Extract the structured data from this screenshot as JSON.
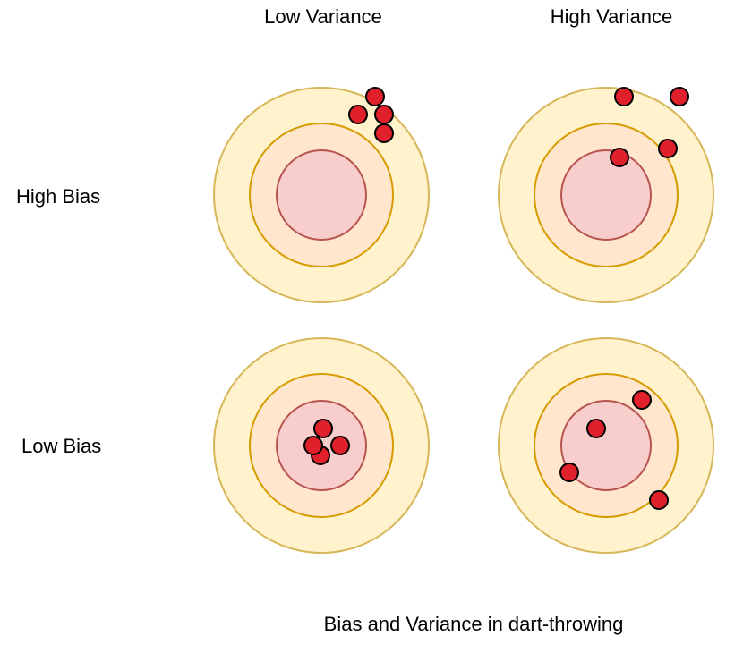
{
  "columns": {
    "low_variance": "Low Variance",
    "high_variance": "High Variance"
  },
  "rows": {
    "high_bias": "High Bias",
    "low_bias": "Low Bias"
  },
  "caption": "Bias and Variance in dart-throwing",
  "colors": {
    "outer_ring_fill": "#fff2cc",
    "outer_ring_stroke": "#d6b656",
    "middle_ring_fill": "#ffe6cc",
    "middle_ring_stroke": "#d79b00",
    "bullseye_fill": "#f8cecc",
    "bullseye_stroke": "#b85450",
    "dart_fill": "#e0202a",
    "dart_stroke": "#000000"
  },
  "targets": [
    {
      "row": "High Bias",
      "column": "Low Variance",
      "dart_count": 4
    },
    {
      "row": "High Bias",
      "column": "High Variance",
      "dart_count": 4
    },
    {
      "row": "Low Bias",
      "column": "Low Variance",
      "dart_count": 4
    },
    {
      "row": "Low Bias",
      "column": "High Variance",
      "dart_count": 4
    }
  ]
}
